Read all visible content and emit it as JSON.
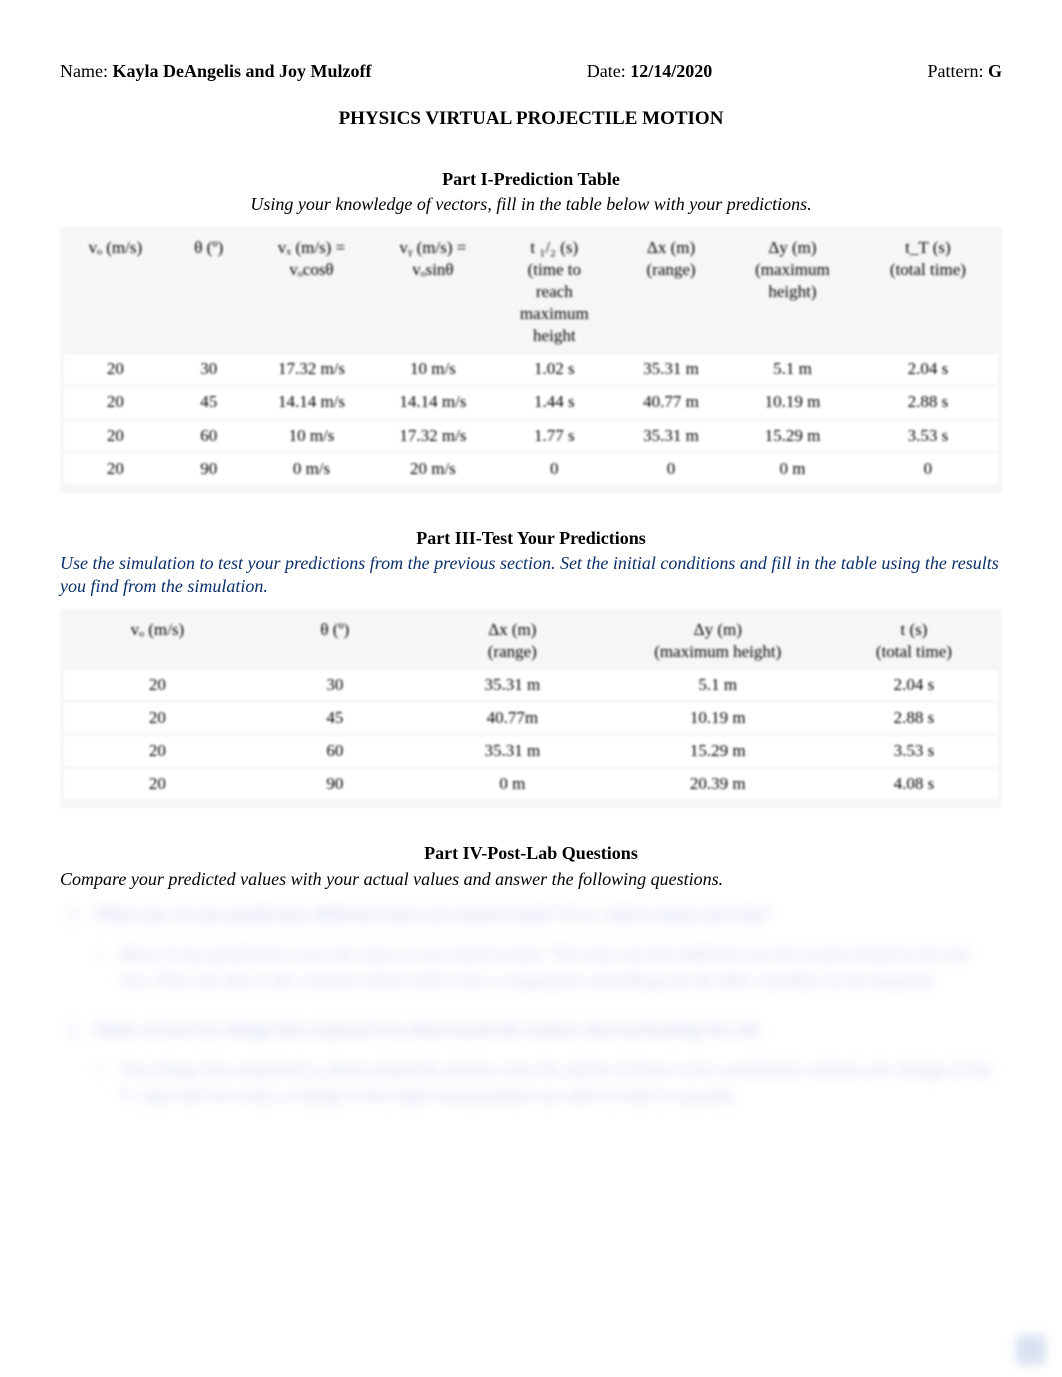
{
  "header": {
    "name_label": "Name: ",
    "name_value": "Kayla DeAngelis and Joy Mulzoff",
    "date_label": "Date: ",
    "date_value": "12/14/2020",
    "pattern_label": "Pattern: ",
    "pattern_value": "G"
  },
  "doc_title": "PHYSICS VIRTUAL PROJECTILE MOTION",
  "part1": {
    "title": "Part I-Prediction Table",
    "subtitle": "Using your knowledge of vectors, fill in the table below with your predictions.",
    "columns": [
      "vₒ (m/s)",
      "θ (º)",
      "vₓ (m/s) =\nvₒcosθ",
      "vᵧ (m/s) =\nvₒsinθ",
      "t ₁/₂ (s)\n(time to\nreach\nmaximum\nheight",
      "Δx (m)\n(range)",
      "Δy (m)\n(maximum\nheight)",
      "t_T (s)\n(total time)"
    ],
    "rows": [
      [
        "20",
        "30",
        "17.32 m/s",
        "10 m/s",
        "1.02 s",
        "35.31 m",
        "5.1 m",
        "2.04 s"
      ],
      [
        "20",
        "45",
        "14.14 m/s",
        "14.14 m/s",
        "1.44 s",
        "40.77 m",
        "10.19 m",
        "2.88 s"
      ],
      [
        "20",
        "60",
        "10 m/s",
        "17.32 m/s",
        "1.77 s",
        "35.31 m",
        "15.29 m",
        "3.53 s"
      ],
      [
        "20",
        "90",
        "0 m/s",
        "20 m/s",
        "0",
        "0",
        "0 m",
        "0"
      ]
    ],
    "col_widths": [
      "11%",
      "9%",
      "13%",
      "13%",
      "13%",
      "12%",
      "14%",
      "15%"
    ]
  },
  "part3": {
    "title": "Part III-Test Your Predictions",
    "subtitle": "Use the simulation to test your predictions from the previous section.  Set the initial conditions and fill in the table using the results you find from the simulation.",
    "columns": [
      "vₒ (m/s)",
      "θ (º)",
      "Δx (m)\n(range)",
      "Δy (m)\n(maximum height)",
      "t (s)\n(total time)"
    ],
    "rows": [
      [
        "20",
        "30",
        "35.31 m",
        "5.1 m",
        "2.04 s"
      ],
      [
        "20",
        "45",
        "40.77m",
        "10.19 m",
        "2.88 s"
      ],
      [
        "20",
        "60",
        "35.31 m",
        "15.29 m",
        "3.53 s"
      ],
      [
        "20",
        "90",
        "0 m",
        "20.39 m",
        "4.08 s"
      ]
    ],
    "col_widths": [
      "20%",
      "18%",
      "20%",
      "24%",
      "18%"
    ]
  },
  "part4": {
    "title": "Part IV-Post-Lab Questions",
    "subtitle": "Compare your predicted values with your actual values and answer the following questions.",
    "q1": {
      "line": "When any of your predictions different from your tested results?  If so, which one(s) and why?",
      "ans": "Most of my predictions were the same as our tested results.  The only one that differed was the results found in the last row.  This was due to the velocity which will to the x component cancelling out all other variables in the equation."
    },
    "q2": {
      "line": "Name at least two things that surprised you about projectile motion after performing this lab.",
      "ans": "Two things that surprised us about projectile motion were the ability of there to be a prediction without any change in the Vₓ data and how only a change in the angle measurement can affect results so greatly."
    }
  },
  "style": {
    "blur_color": "#b9c7e6",
    "table_bg": "#f6f6f6",
    "sub_color": "#0a2f6b"
  }
}
